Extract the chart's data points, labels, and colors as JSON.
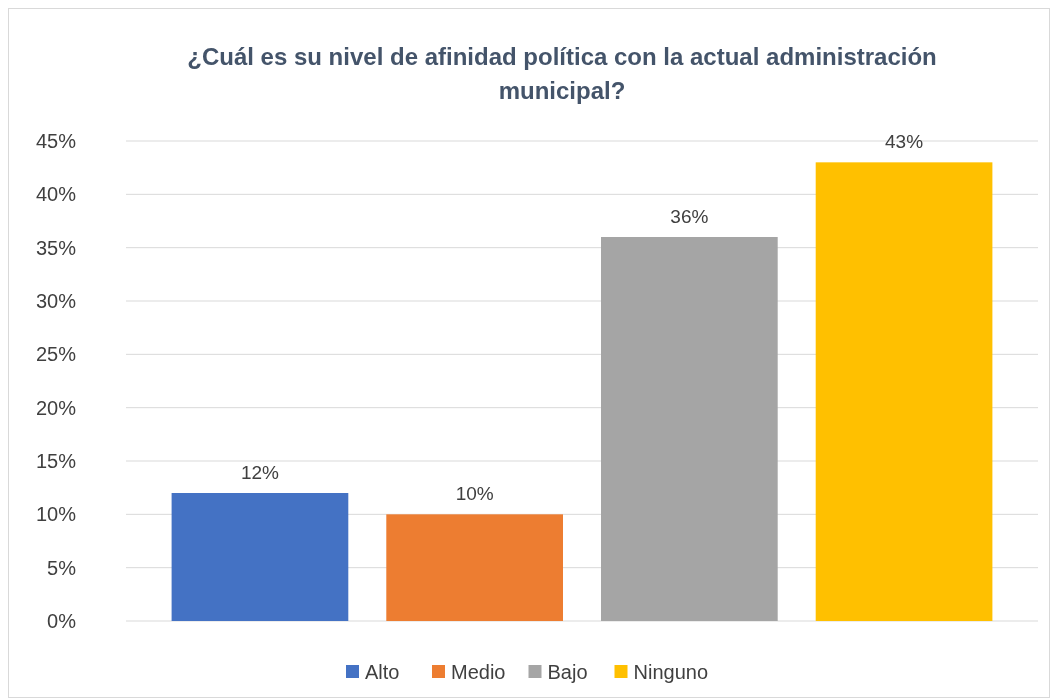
{
  "chart_data": {
    "type": "bar",
    "title": "¿Cuál es su nivel de afinidad política con la actual administración municipal?",
    "categories": [
      null
    ],
    "series": [
      {
        "name": "Alto",
        "color": "#4472c4",
        "values": [
          12
        ],
        "value_labels": [
          "12%"
        ]
      },
      {
        "name": "Medio",
        "color": "#ed7d31",
        "values": [
          10
        ],
        "value_labels": [
          "10%"
        ]
      },
      {
        "name": "Bajo",
        "color": "#a5a5a5",
        "values": [
          36
        ],
        "value_labels": [
          "36%"
        ]
      },
      {
        "name": "Ninguno",
        "color": "#ffc000",
        "values": [
          43
        ],
        "value_labels": [
          "43%"
        ]
      }
    ],
    "ylim": [
      0,
      45
    ],
    "yticks": [
      {
        "value": 0,
        "label": "0%"
      },
      {
        "value": 5,
        "label": "5%"
      },
      {
        "value": 10,
        "label": "10%"
      },
      {
        "value": 15,
        "label": "15%"
      },
      {
        "value": 20,
        "label": "20%"
      },
      {
        "value": 25,
        "label": "25%"
      },
      {
        "value": 30,
        "label": "30%"
      },
      {
        "value": 35,
        "label": "35%"
      },
      {
        "value": 40,
        "label": "40%"
      },
      {
        "value": 45,
        "label": "45%"
      }
    ],
    "grid": "y",
    "legend": "bottom"
  }
}
